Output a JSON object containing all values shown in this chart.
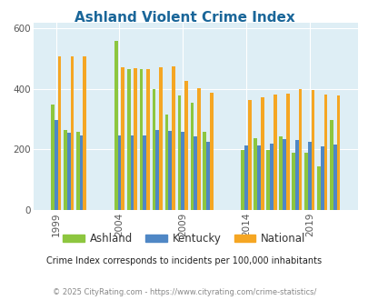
{
  "title": "Ashland Violent Crime Index",
  "title_color": "#1a6699",
  "subtitle": "Crime Index corresponds to incidents per 100,000 inhabitants",
  "footer": "© 2025 CityRating.com - https://www.cityrating.com/crime-statistics/",
  "years": [
    1999,
    2000,
    2001,
    2004,
    2005,
    2006,
    2007,
    2008,
    2009,
    2010,
    2011,
    2014,
    2015,
    2016,
    2017,
    2018,
    2019,
    2020,
    2021
  ],
  "ashland": [
    350,
    265,
    260,
    560,
    465,
    465,
    400,
    315,
    380,
    355,
    260,
    198,
    238,
    198,
    242,
    190,
    190,
    145,
    298
  ],
  "kentucky": [
    298,
    255,
    248,
    248,
    248,
    248,
    265,
    263,
    260,
    243,
    225,
    212,
    212,
    220,
    235,
    230,
    225,
    210,
    215
  ],
  "national": [
    507,
    507,
    507,
    472,
    468,
    465,
    473,
    475,
    428,
    404,
    389,
    365,
    373,
    381,
    384,
    399,
    396,
    383,
    379
  ],
  "bar_colors": [
    "#8dc63f",
    "#4f87c5",
    "#f5a623"
  ],
  "ylim": [
    0,
    620
  ],
  "yticks": [
    0,
    200,
    400,
    600
  ],
  "xlim": [
    1997.2,
    2022.8
  ],
  "background_color": "#deeef5",
  "legend_labels": [
    "Ashland",
    "Kentucky",
    "National"
  ],
  "grid_color": "#ffffff",
  "xtick_years": [
    1999,
    2004,
    2009,
    2014,
    2019
  ]
}
